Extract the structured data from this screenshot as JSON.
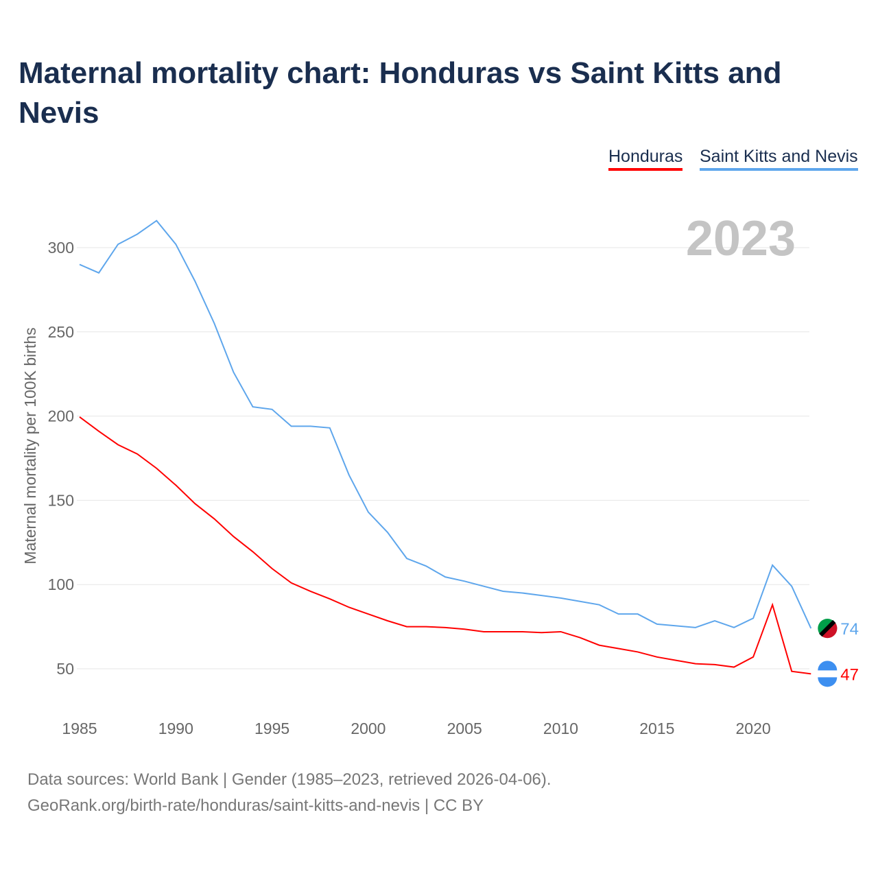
{
  "title": "Maternal mortality chart: Honduras vs Saint Kitts and Nevis",
  "year_label": "2023",
  "source_line1": "Data sources: World Bank | Gender (1985–2023, retrieved 2026-04-06).",
  "source_line2": "GeoRank.org/birth-rate/honduras/saint-kitts-and-nevis | CC BY",
  "chart_data": {
    "type": "line",
    "title": "Maternal mortality chart: Honduras vs Saint Kitts and Nevis",
    "xlabel": "",
    "ylabel": "Maternal mortality per 100K births",
    "xlim": [
      1985,
      2023
    ],
    "ylim": [
      25,
      330
    ],
    "xticks": [
      1985,
      1990,
      1995,
      2000,
      2005,
      2010,
      2015,
      2020
    ],
    "yticks": [
      50,
      100,
      150,
      200,
      250,
      300
    ],
    "grid": true,
    "legend": "top-right",
    "x": [
      1985,
      1986,
      1987,
      1988,
      1989,
      1990,
      1991,
      1992,
      1993,
      1994,
      1995,
      1996,
      1997,
      1998,
      1999,
      2000,
      2001,
      2002,
      2003,
      2004,
      2005,
      2006,
      2007,
      2008,
      2009,
      2010,
      2011,
      2012,
      2013,
      2014,
      2015,
      2016,
      2017,
      2018,
      2019,
      2020,
      2021,
      2022,
      2023
    ],
    "series": [
      {
        "name": "Honduras",
        "color": "#ff0000",
        "end_label": "47",
        "values": [
          199.5,
          191,
          183,
          177.5,
          169,
          159,
          148,
          139,
          128.5,
          119.5,
          109.5,
          101,
          96,
          91.5,
          86.5,
          82.5,
          78.5,
          75,
          75,
          74.5,
          73.5,
          72,
          72,
          72,
          71.5,
          72,
          68.5,
          64,
          62,
          60,
          57,
          55,
          53,
          52.5,
          51,
          57,
          88,
          48.5,
          47
        ]
      },
      {
        "name": "Saint Kitts and Nevis",
        "color": "#5ea6ec",
        "end_label": "74",
        "values": [
          290,
          285,
          302,
          308,
          316,
          302,
          280,
          255,
          226,
          205.5,
          204,
          194,
          194,
          193,
          165,
          143,
          131,
          115.5,
          111,
          104.5,
          102,
          99,
          96,
          95,
          93.5,
          92,
          90,
          88,
          82.5,
          82.5,
          76.5,
          75.5,
          74.5,
          78.5,
          74.5,
          80,
          111.5,
          99,
          74
        ]
      }
    ]
  }
}
